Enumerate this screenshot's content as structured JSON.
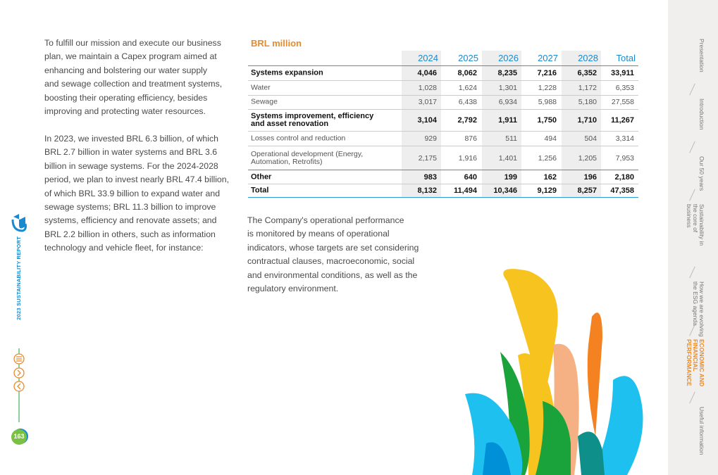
{
  "left_text": {
    "paragraphs": [
      [
        "To fulfill our mission and execute our business",
        "plan, we maintain a Capex program aimed at",
        "enhancing and bolstering our water supply",
        "and sewage collection and treatment systems,",
        "boosting their operating efficiency, besides",
        "improving and protecting water resources."
      ],
      [
        "In 2023, we invested BRL 6.3 billion, of which",
        "BRL 2.7 billion in water systems and BRL 3.6",
        "billion in sewage systems. For the 2024-2028",
        "period, we plan to invest nearly BRL 47.4 billion,",
        "of which BRL 33.9 billion to expand water and",
        "sewage systems; BRL 11.3 billion to improve",
        "systems, efficiency and renovate assets; and",
        "BRL 2.2 billion in others, such as information",
        "technology and vehicle fleet, for instance:"
      ]
    ]
  },
  "table": {
    "title": "BRL million",
    "columns": [
      "2024",
      "2025",
      "2026",
      "2027",
      "2028",
      "Total"
    ],
    "rows": [
      {
        "label": "Systems expansion",
        "values": [
          "4,046",
          "8,062",
          "8,235",
          "7,216",
          "6,352",
          "33,911"
        ]
      },
      {
        "label": "Water",
        "values": [
          "1,028",
          "1,624",
          "1,301",
          "1,228",
          "1,172",
          "6,353"
        ]
      },
      {
        "label": "Sewage",
        "values": [
          "3,017",
          "6,438",
          "6,934",
          "5,988",
          "5,180",
          "27,558"
        ]
      },
      {
        "label": "Systems improvement, efficiency and asset renovation",
        "values": [
          "3,104",
          "2,792",
          "1,911",
          "1,750",
          "1,710",
          "11,267"
        ]
      },
      {
        "label": "Losses control and reduction",
        "values": [
          "929",
          "876",
          "511",
          "494",
          "504",
          "3,314"
        ]
      },
      {
        "label": "Operational development (Energy, Automation, Retrofits)",
        "values": [
          "2,175",
          "1,916",
          "1,401",
          "1,256",
          "1,205",
          "7,953"
        ]
      },
      {
        "label": "Other",
        "values": [
          "983",
          "640",
          "199",
          "162",
          "196",
          "2,180"
        ]
      },
      {
        "label": "Total",
        "values": [
          "8,132",
          "11,494",
          "10,346",
          "9,129",
          "8,257",
          "47,358"
        ]
      }
    ]
  },
  "right_text": {
    "lines": [
      "The Company's operational performance",
      "is monitored by means of operational",
      "indicators, whose targets are set considering",
      "contractual clauses, macroeconomic, social",
      "and environmental conditions, as well as the",
      "regulatory environment."
    ]
  },
  "sidebar": {
    "report": "2023 SUSTAINABILITY REPORT",
    "page": "163"
  },
  "nav": {
    "items": [
      "Presentation",
      "Introduction",
      "Our 50 years",
      "Sustainability in the core of business",
      "How we are evolving the ESG agenda",
      "ECONOMIC AND FINANCIAL PERFORMANCE",
      "Useful information"
    ]
  }
}
